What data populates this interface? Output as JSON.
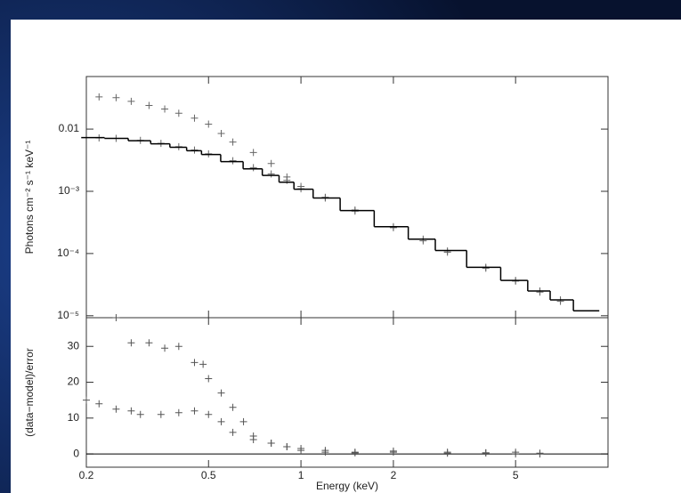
{
  "chart_data": [
    {
      "type": "spectrum",
      "ylabel": "Photons cm⁻² s⁻¹ keV⁻¹",
      "xlog": true,
      "ylog": true,
      "xlim": [
        0.2,
        10
      ],
      "ylim": [
        9.3e-06,
        0.07
      ],
      "xticks": [
        0.2,
        0.5,
        1,
        2,
        5
      ],
      "yticks": [
        0.01,
        {
          "value": 0.001,
          "label": "10⁻³"
        },
        {
          "value": 0.0001,
          "label": "10⁻⁴"
        },
        {
          "value": 1e-05,
          "label": "10⁻⁵"
        }
      ],
      "series": [
        {
          "kind": "points",
          "color": "#666",
          "x": [
            0.22,
            0.25,
            0.28,
            0.32,
            0.36,
            0.4,
            0.45,
            0.5,
            0.55,
            0.6,
            0.7,
            0.8,
            0.9,
            1.0,
            1.2,
            1.5,
            2,
            2.5,
            3,
            4,
            5,
            6,
            7
          ],
          "values": [
            0.033,
            0.032,
            0.028,
            0.024,
            0.021,
            0.018,
            0.015,
            0.012,
            0.0085,
            0.0062,
            0.0042,
            0.0028,
            0.0017,
            0.0012,
            0.00078,
            0.00048,
            0.00026,
            0.00016,
            0.000105,
            5.8e-05,
            3.6e-05,
            2.4e-05,
            1.7e-05
          ]
        },
        {
          "kind": "points",
          "color": "#666",
          "x": [
            0.22,
            0.25,
            0.3,
            0.35,
            0.4,
            0.45,
            0.5,
            0.6,
            0.7,
            0.8,
            0.9,
            1,
            1.2,
            1.5,
            2,
            2.5,
            3,
            4,
            5,
            6,
            7
          ],
          "values": [
            0.0072,
            0.0071,
            0.0066,
            0.0059,
            0.0052,
            0.0046,
            0.004,
            0.0031,
            0.0024,
            0.0019,
            0.0015,
            0.0011,
            0.0008,
            0.0005,
            0.00027,
            0.00017,
            0.00011,
            6e-05,
            3.7e-05,
            2.5e-05,
            1.8e-05
          ]
        },
        {
          "kind": "step",
          "color": "#000",
          "x": [
            0.21,
            0.25,
            0.3,
            0.35,
            0.4,
            0.45,
            0.5,
            0.6,
            0.7,
            0.8,
            0.9,
            1,
            1.2,
            1.5,
            2,
            2.5,
            3,
            4,
            5,
            6,
            7,
            8.5
          ],
          "values": [
            0.0073,
            0.0071,
            0.0065,
            0.0058,
            0.0051,
            0.0045,
            0.0039,
            0.003,
            0.0023,
            0.0018,
            0.0014,
            0.00108,
            0.00078,
            0.00049,
            0.00027,
            0.00017,
            0.000112,
            6e-05,
            3.7e-05,
            2.5e-05,
            1.8e-05,
            1.2e-05
          ]
        }
      ]
    },
    {
      "type": "residual",
      "ylabel": "(data−model)/error",
      "xlabel": "Energy (keV)",
      "xlog": true,
      "xlim": [
        0.2,
        10
      ],
      "ylim": [
        -3.7,
        38
      ],
      "xticks": [
        0.2,
        0.5,
        1,
        2,
        5
      ],
      "yticks": [
        0,
        10,
        20,
        30
      ],
      "reference_line": 0,
      "series": [
        {
          "kind": "points",
          "color": "#555",
          "x": [
            0.25,
            0.28,
            0.32,
            0.36,
            0.4,
            0.45,
            0.48,
            0.5,
            0.55,
            0.6,
            0.65,
            0.7,
            0.8,
            0.9,
            1,
            1.2,
            1.5,
            2,
            3,
            4,
            5,
            6
          ],
          "values": [
            38,
            31,
            31,
            29.5,
            30,
            25.5,
            25,
            21,
            17,
            13,
            9,
            5,
            3,
            2,
            1,
            0.5,
            0.3,
            0.5,
            0.2,
            0.3,
            0,
            0.2
          ]
        },
        {
          "kind": "points",
          "color": "#555",
          "x": [
            0.2,
            0.22,
            0.25,
            0.28,
            0.3,
            0.35,
            0.4,
            0.45,
            0.5,
            0.55,
            0.6,
            0.7,
            0.8,
            0.9,
            1,
            1.2,
            1.5,
            2,
            3,
            4,
            5,
            6
          ],
          "values": [
            15,
            14,
            12.5,
            12,
            11,
            11,
            11.5,
            12,
            11,
            9,
            6,
            4,
            3,
            2,
            1.5,
            1,
            0.5,
            0.8,
            0.5,
            0.3,
            0.5,
            0
          ]
        }
      ]
    }
  ]
}
